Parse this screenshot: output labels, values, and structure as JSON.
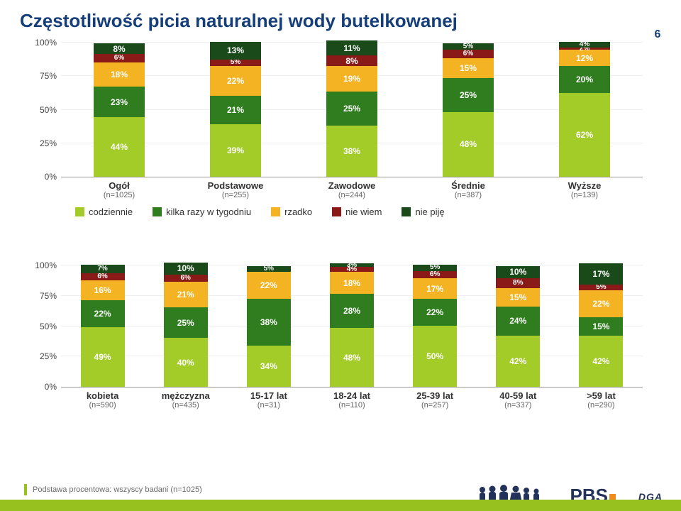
{
  "title": "Częstotliwość picia naturalnej wody butelkowanej",
  "page_number": "6",
  "footnote": "Podstawa procentowa: wszyscy badani (n=1025)",
  "yaxis": {
    "ticks": [
      0,
      25,
      50,
      75,
      100
    ],
    "labels": [
      "0%",
      "25%",
      "50%",
      "75%",
      "100%"
    ]
  },
  "series": [
    {
      "key": "codziennie",
      "label": "codziennie",
      "color": "#a3cc29"
    },
    {
      "key": "kilka",
      "label": "kilka razy w tygodniu",
      "color": "#2f7d1f"
    },
    {
      "key": "rzadko",
      "label": "rzadko",
      "color": "#f4b323"
    },
    {
      "key": "nie_wiem",
      "label": "nie wiem",
      "color": "#8a1a18"
    },
    {
      "key": "nie_pije",
      "label": "nie piję",
      "color": "#1a4a1a"
    }
  ],
  "chart1": {
    "categories": [
      {
        "label": "Ogół",
        "sub": "(n=1025)",
        "values": {
          "codziennie": 44,
          "kilka": 23,
          "rzadko": 18,
          "nie_wiem": 6,
          "nie_pije": 8
        }
      },
      {
        "label": "Podstawowe",
        "sub": "(n=255)",
        "values": {
          "codziennie": 39,
          "kilka": 21,
          "rzadko": 22,
          "nie_wiem": 5,
          "nie_pije": 13
        }
      },
      {
        "label": "Zawodowe",
        "sub": "(n=244)",
        "values": {
          "codziennie": 38,
          "kilka": 25,
          "rzadko": 19,
          "nie_wiem": 8,
          "nie_pije": 11
        }
      },
      {
        "label": "Średnie",
        "sub": "(n=387)",
        "values": {
          "codziennie": 48,
          "kilka": 25,
          "rzadko": 15,
          "nie_wiem": 6,
          "nie_pije": 5
        }
      },
      {
        "label": "Wyższe",
        "sub": "(n=139)",
        "values": {
          "codziennie": 62,
          "kilka": 20,
          "rzadko": 12,
          "nie_wiem": 2,
          "nie_pije": 4
        }
      }
    ]
  },
  "chart2": {
    "categories": [
      {
        "label": "kobieta",
        "sub": "(n=590)",
        "values": {
          "codziennie": 49,
          "kilka": 22,
          "rzadko": 16,
          "nie_wiem": 6,
          "nie_pije": 7
        }
      },
      {
        "label": "mężczyzna",
        "sub": "(n=435)",
        "values": {
          "codziennie": 40,
          "kilka": 25,
          "rzadko": 21,
          "nie_wiem": 6,
          "nie_pije": 10
        }
      },
      {
        "label": "15-17 lat",
        "sub": "(n=31)",
        "values": {
          "codziennie": 34,
          "kilka": 38,
          "rzadko": 22,
          "nie_wiem": 0,
          "nie_pije": 5
        }
      },
      {
        "label": "18-24 lat",
        "sub": "(n=110)",
        "values": {
          "codziennie": 48,
          "kilka": 28,
          "rzadko": 18,
          "nie_wiem": 4,
          "nie_pije": 3
        }
      },
      {
        "label": "25-39 lat",
        "sub": "(n=257)",
        "values": {
          "codziennie": 50,
          "kilka": 22,
          "rzadko": 17,
          "nie_wiem": 6,
          "nie_pije": 5
        }
      },
      {
        "label": "40-59 lat",
        "sub": "(n=337)",
        "values": {
          "codziennie": 42,
          "kilka": 24,
          "rzadko": 15,
          "nie_wiem": 8,
          "nie_pije": 10
        }
      },
      {
        "label": ">59 lat",
        "sub": "(n=290)",
        "values": {
          "codziennie": 42,
          "kilka": 15,
          "rzadko": 22,
          "nie_wiem": 5,
          "nie_pije": 17
        }
      }
    ]
  },
  "logos": {
    "pbs": "PBS",
    "dga": "DGA"
  }
}
